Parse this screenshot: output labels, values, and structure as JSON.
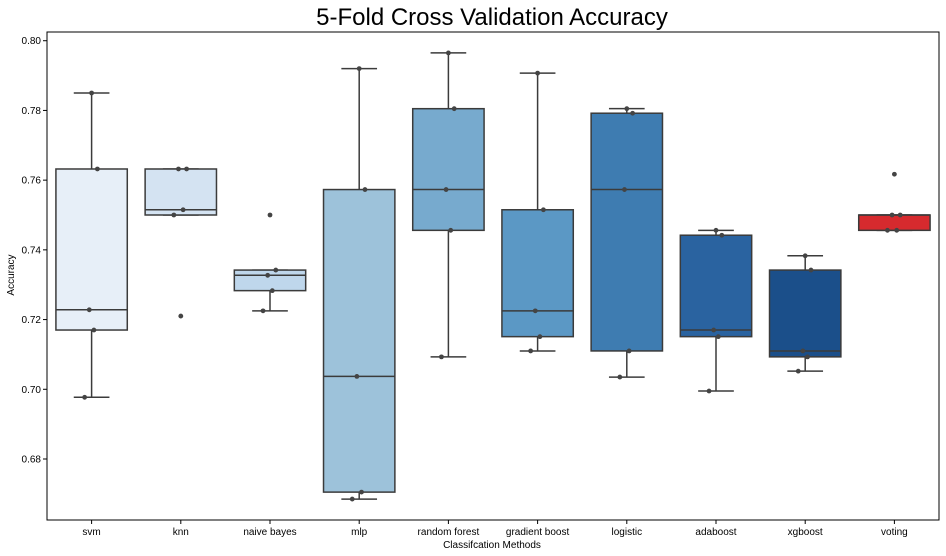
{
  "chart_data": {
    "type": "box",
    "title": "5-Fold Cross Validation Accuracy",
    "xlabel": "Classifcation Methods",
    "ylabel": "Accuracy",
    "ylim": [
      0.6625,
      0.8025
    ],
    "yticks": [
      "0.68",
      "0.70",
      "0.72",
      "0.74",
      "0.76",
      "0.78",
      "0.80"
    ],
    "grid": false,
    "categories": [
      {
        "name": "svm",
        "color": "#e7eff8",
        "q1": 0.717,
        "median": 0.7228,
        "q3": 0.7632,
        "whisker_low": 0.6977,
        "whisker_high": 0.785,
        "points": [
          0.6977,
          0.717,
          0.7228,
          0.7632,
          0.785
        ],
        "outliers": []
      },
      {
        "name": "knn",
        "color": "#d4e3f2",
        "q1": 0.75,
        "median": 0.7515,
        "q3": 0.7632,
        "whisker_low": 0.75,
        "whisker_high": 0.7632,
        "points": [
          0.75,
          0.7515,
          0.7632,
          0.7632,
          0.721
        ],
        "outliers": [
          0.721
        ]
      },
      {
        "name": "naive bayes",
        "color": "#bfd7ec",
        "q1": 0.7283,
        "median": 0.7327,
        "q3": 0.7342,
        "whisker_low": 0.7225,
        "whisker_high": 0.7342,
        "points": [
          0.7225,
          0.7283,
          0.7327,
          0.7342,
          0.75
        ],
        "outliers": [
          0.75
        ]
      },
      {
        "name": "mlp",
        "color": "#9dc2da",
        "q1": 0.6705,
        "median": 0.7037,
        "q3": 0.7573,
        "whisker_low": 0.6685,
        "whisker_high": 0.792,
        "points": [
          0.6685,
          0.6705,
          0.7037,
          0.7573,
          0.792
        ],
        "outliers": []
      },
      {
        "name": "random forest",
        "color": "#77aace",
        "q1": 0.7456,
        "median": 0.7573,
        "q3": 0.7805,
        "whisker_low": 0.7093,
        "whisker_high": 0.7965,
        "points": [
          0.7093,
          0.7456,
          0.7573,
          0.7805,
          0.7965
        ],
        "outliers": []
      },
      {
        "name": "gradient boost",
        "color": "#5b98c5",
        "q1": 0.7151,
        "median": 0.7225,
        "q3": 0.7515,
        "whisker_low": 0.711,
        "whisker_high": 0.7907,
        "points": [
          0.711,
          0.7151,
          0.7225,
          0.7515,
          0.7907
        ],
        "outliers": []
      },
      {
        "name": "logistic",
        "color": "#3e7cb1",
        "q1": 0.711,
        "median": 0.7573,
        "q3": 0.7792,
        "whisker_low": 0.7035,
        "whisker_high": 0.7805,
        "points": [
          0.7035,
          0.711,
          0.7573,
          0.7792,
          0.7805
        ],
        "outliers": []
      },
      {
        "name": "adaboost",
        "color": "#2a63a0",
        "q1": 0.7151,
        "median": 0.717,
        "q3": 0.7442,
        "whisker_low": 0.6995,
        "whisker_high": 0.7456,
        "points": [
          0.6995,
          0.7151,
          0.717,
          0.7442,
          0.7456
        ],
        "outliers": []
      },
      {
        "name": "xgboost",
        "color": "#1b4f8a",
        "q1": 0.7093,
        "median": 0.711,
        "q3": 0.7342,
        "whisker_low": 0.7052,
        "whisker_high": 0.7383,
        "points": [
          0.7052,
          0.7093,
          0.711,
          0.7342,
          0.7383
        ],
        "outliers": []
      },
      {
        "name": "voting",
        "color": "#d62a2e",
        "q1": 0.7456,
        "median": 0.75,
        "q3": 0.75,
        "whisker_low": 0.7456,
        "whisker_high": 0.75,
        "points": [
          0.7456,
          0.7456,
          0.75,
          0.75,
          0.7617
        ],
        "outliers": [
          0.7617
        ]
      }
    ]
  }
}
